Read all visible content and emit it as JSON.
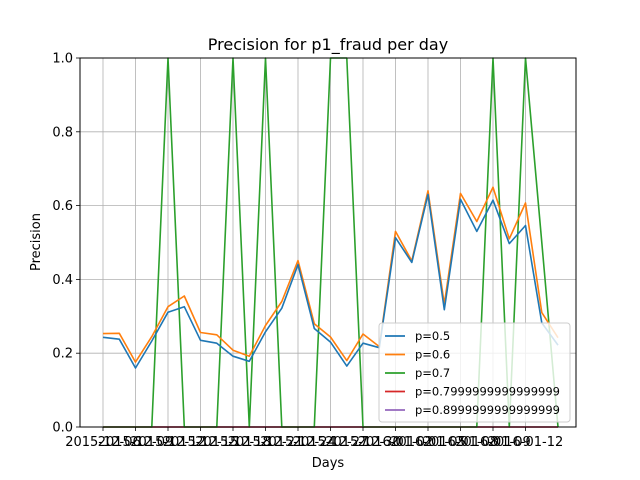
{
  "chart_data": {
    "type": "line",
    "title": "Precision for p1_fraud per day",
    "xlabel": "Days",
    "ylabel": "Precision",
    "ylim": [
      0,
      1.0
    ],
    "y_ticks": [
      "0.0",
      "0.2",
      "0.4",
      "0.6",
      "0.8",
      "1.0"
    ],
    "x_ticks": [
      "2015-12-06",
      "2015-12-09",
      "2015-12-12",
      "2015-12-15",
      "2015-12-18",
      "2015-12-21",
      "2015-12-24",
      "2015-12-27",
      "2015-12-30",
      "2016-01-02",
      "2016-01-05",
      "2016-01-08",
      "2016-01-09",
      "2016-01-12"
    ],
    "grid": true,
    "legend_position": "lower-right",
    "x": [
      0,
      1,
      2,
      3,
      4,
      5,
      6,
      7,
      8,
      9,
      10,
      11,
      12,
      13,
      14,
      15,
      16,
      17,
      18,
      19,
      20,
      21,
      22,
      23,
      24,
      25,
      26,
      27,
      28
    ],
    "series": [
      {
        "name": "p=0.5",
        "color": "#1f77b4",
        "values": [
          0.243,
          0.238,
          0.16,
          0.233,
          0.311,
          0.326,
          0.235,
          0.227,
          0.192,
          0.178,
          0.258,
          0.322,
          0.44,
          0.267,
          0.23,
          0.165,
          0.227,
          0.215,
          0.513,
          0.446,
          0.63,
          0.318,
          0.617,
          0.53,
          0.615,
          0.497,
          0.546,
          0.282,
          0.222
        ]
      },
      {
        "name": "p=0.6",
        "color": "#ff7f0e",
        "values": [
          0.253,
          0.254,
          0.176,
          0.245,
          0.326,
          0.355,
          0.256,
          0.25,
          0.208,
          0.192,
          0.275,
          0.34,
          0.451,
          0.28,
          0.244,
          0.18,
          0.252,
          0.218,
          0.53,
          0.45,
          0.64,
          0.333,
          0.633,
          0.557,
          0.65,
          0.51,
          0.607,
          0.31,
          0.242
        ]
      },
      {
        "name": "p=0.7",
        "color": "#2ca02c",
        "values": [
          0,
          0,
          0,
          0,
          1.0,
          0,
          0,
          0,
          1.0,
          0,
          1.0,
          0,
          0,
          0,
          1.0,
          1.0,
          0,
          0,
          0,
          0,
          0,
          0,
          0,
          0,
          1.0,
          0,
          1.0,
          0.5,
          0
        ]
      },
      {
        "name": "p=0.7999999999999999",
        "color": "#d62728",
        "values": [
          0,
          0,
          0,
          0,
          0,
          0,
          0,
          0,
          0,
          0,
          0,
          0,
          0,
          0,
          0,
          0,
          0,
          0,
          0,
          0,
          0,
          0,
          0,
          0,
          0,
          0,
          0,
          0,
          0
        ]
      },
      {
        "name": "p=0.8999999999999999",
        "color": "#9467bd",
        "values": [
          0,
          0,
          0,
          0,
          0,
          0,
          0,
          0,
          0,
          0,
          0,
          0,
          0,
          0,
          0,
          0,
          0,
          0,
          0,
          0,
          0,
          0,
          0,
          0,
          0,
          0,
          0,
          0,
          0
        ]
      }
    ]
  }
}
